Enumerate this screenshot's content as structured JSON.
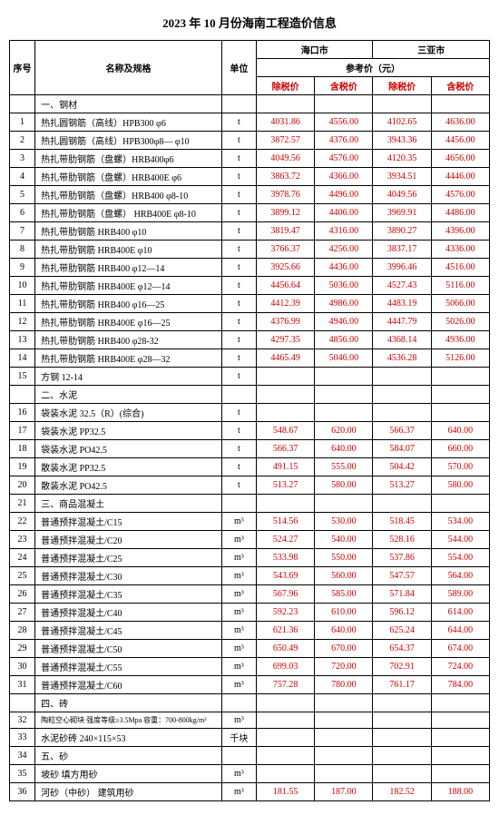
{
  "title": "2023 年 10 月份海南工程造价信息",
  "headers": {
    "seq": "序号",
    "name": "名称及规格",
    "unit": "单位",
    "city1": "海口市",
    "city2": "三亚市",
    "refprice": "参考价（元）",
    "exTax": "除税价",
    "inTax": "含税价"
  },
  "rows": [
    {
      "seq": "",
      "name": "一、钢材",
      "unit": "",
      "p": [
        "",
        "",
        "",
        ""
      ],
      "section": true
    },
    {
      "seq": "1",
      "name": "热扎圆钢筋（高线）HPB300 φ6",
      "unit": "t",
      "p": [
        "4031.86",
        "4556.00",
        "4102.65",
        "4636.00"
      ]
    },
    {
      "seq": "2",
      "name": "热扎圆钢筋（高线）HPB300φ8— φ10",
      "unit": "t",
      "p": [
        "3872.57",
        "4376.00",
        "3943.36",
        "4456.00"
      ]
    },
    {
      "seq": "3",
      "name": "热扎带肋钢筋（盘螺）HRB400φ6",
      "unit": "t",
      "p": [
        "4049.56",
        "4576.00",
        "4120.35",
        "4656.00"
      ]
    },
    {
      "seq": "4",
      "name": "热扎带肋钢筋（盘螺）HRB400E φ6",
      "unit": "t",
      "p": [
        "3863.72",
        "4366.00",
        "3934.51",
        "4446.00"
      ]
    },
    {
      "seq": "5",
      "name": "热扎带肋钢筋（盘螺）HRB400 φ8-10",
      "unit": "t",
      "p": [
        "3978.76",
        "4496.00",
        "4049.56",
        "4576.00"
      ]
    },
    {
      "seq": "6",
      "name": "热扎带肋钢筋（盘螺） HRB400E φ8-10",
      "unit": "t",
      "p": [
        "3899.12",
        "4406.00",
        "3969.91",
        "4486.00"
      ]
    },
    {
      "seq": "7",
      "name": "热扎带肋钢筋  HRB400    φ10",
      "unit": "t",
      "p": [
        "3819.47",
        "4316.00",
        "3890.27",
        "4396.00"
      ]
    },
    {
      "seq": "8",
      "name": "热扎带肋钢筋  HRB400E   φ10",
      "unit": "t",
      "p": [
        "3766.37",
        "4256.00",
        "3837.17",
        "4336.00"
      ]
    },
    {
      "seq": "9",
      "name": "热扎带肋钢筋  HRB400    φ12—14",
      "unit": "t",
      "p": [
        "3925.66",
        "4436.00",
        "3996.46",
        "4516.00"
      ]
    },
    {
      "seq": "10",
      "name": "热扎带肋钢筋  HRB400E    φ12—14",
      "unit": "t",
      "p": [
        "4456.64",
        "5036.00",
        "4527.43",
        "5116.00"
      ]
    },
    {
      "seq": "11",
      "name": "热扎带肋钢筋  HRB400    φ16—25",
      "unit": "t",
      "p": [
        "4412.39",
        "4986.00",
        "4483.19",
        "5066.00"
      ]
    },
    {
      "seq": "12",
      "name": "热扎带肋钢筋  HRB400E    φ16—25",
      "unit": "t",
      "p": [
        "4376.99",
        "4946.00",
        "4447.79",
        "5026.00"
      ]
    },
    {
      "seq": "13",
      "name": "热扎带肋钢筋  HRB400    φ28-32",
      "unit": "t",
      "p": [
        "4297.35",
        "4856.00",
        "4368.14",
        "4936.00"
      ]
    },
    {
      "seq": "14",
      "name": "热扎带肋钢筋  HRB400E   φ28—32",
      "unit": "t",
      "p": [
        "4465.49",
        "5046.00",
        "4536.28",
        "5126.00"
      ]
    },
    {
      "seq": "15",
      "name": "方钢   12-14",
      "unit": "t",
      "p": [
        "",
        "",
        "",
        ""
      ]
    },
    {
      "seq": "",
      "name": "二、水泥",
      "unit": "",
      "p": [
        "",
        "",
        "",
        ""
      ],
      "section": true
    },
    {
      "seq": "16",
      "name": "袋装水泥 32.5（R）(综合)",
      "unit": "t",
      "p": [
        "",
        "",
        "",
        ""
      ]
    },
    {
      "seq": "17",
      "name": "袋装水泥 PP32.5",
      "unit": "t",
      "p": [
        "548.67",
        "620.00",
        "566.37",
        "640.00"
      ]
    },
    {
      "seq": "18",
      "name": "袋装水泥 PO42.5",
      "unit": "t",
      "p": [
        "566.37",
        "640.00",
        "584.07",
        "660.00"
      ]
    },
    {
      "seq": "19",
      "name": "散装水泥 PP32.5",
      "unit": "t",
      "p": [
        "491.15",
        "555.00",
        "504.42",
        "570.00"
      ]
    },
    {
      "seq": "20",
      "name": "散装水泥 PO42.5",
      "unit": "t",
      "p": [
        "513.27",
        "580.00",
        "513.27",
        "580.00"
      ]
    },
    {
      "seq": "21",
      "name": "三、商品混凝土",
      "unit": "",
      "p": [
        "",
        "",
        "",
        ""
      ],
      "section": true
    },
    {
      "seq": "22",
      "name": "普通预拌混凝土/C15",
      "unit": "m³",
      "p": [
        "514.56",
        "530.00",
        "518.45",
        "534.00"
      ]
    },
    {
      "seq": "23",
      "name": "普通预拌混凝土/C20",
      "unit": "m³",
      "p": [
        "524.27",
        "540.00",
        "528.16",
        "544.00"
      ]
    },
    {
      "seq": "24",
      "name": "普通预拌混凝土/C25",
      "unit": "m³",
      "p": [
        "533.98",
        "550.00",
        "537.86",
        "554.00"
      ]
    },
    {
      "seq": "25",
      "name": "普通预拌混凝土/C30",
      "unit": "m³",
      "p": [
        "543.69",
        "560.00",
        "547.57",
        "564.00"
      ]
    },
    {
      "seq": "26",
      "name": "普通预拌混凝土/C35",
      "unit": "m³",
      "p": [
        "567.96",
        "585.00",
        "571.84",
        "589.00"
      ]
    },
    {
      "seq": "27",
      "name": "普通预拌混凝土/C40",
      "unit": "m³",
      "p": [
        "592.23",
        "610.00",
        "596.12",
        "614.00"
      ]
    },
    {
      "seq": "28",
      "name": "普通预拌混凝土/C45",
      "unit": "m³",
      "p": [
        "621.36",
        "640.00",
        "625.24",
        "644.00"
      ]
    },
    {
      "seq": "29",
      "name": "普通预拌混凝土/C50",
      "unit": "m³",
      "p": [
        "650.49",
        "670.00",
        "654.37",
        "674.00"
      ]
    },
    {
      "seq": "30",
      "name": "普通预拌混凝土/C55",
      "unit": "m³",
      "p": [
        "699.03",
        "720.00",
        "702.91",
        "724.00"
      ]
    },
    {
      "seq": "31",
      "name": "普通预拌混凝土/C60",
      "unit": "m³",
      "p": [
        "757.28",
        "780.00",
        "761.17",
        "784.00"
      ]
    },
    {
      "seq": "",
      "name": "四、砖",
      "unit": "",
      "p": [
        "",
        "",
        "",
        ""
      ],
      "section": true
    },
    {
      "seq": "32",
      "name": "陶粒空心砌块 强度等级≥3.5Mpa 容重：700-800kg/m³",
      "unit": "m³",
      "p": [
        "",
        "",
        "",
        ""
      ],
      "small": true
    },
    {
      "seq": "33",
      "name": "水泥砂砖 240×115×53",
      "unit": "千块",
      "p": [
        "",
        "",
        "",
        ""
      ]
    },
    {
      "seq": "34",
      "name": "五、砂",
      "unit": "",
      "p": [
        "",
        "",
        "",
        ""
      ],
      "section": true
    },
    {
      "seq": "35",
      "name": "坡砂 填方用砂",
      "unit": "m³",
      "p": [
        "",
        "",
        "",
        ""
      ]
    },
    {
      "seq": "36",
      "name": "河砂（中砂） 建筑用砂",
      "unit": "m³",
      "p": [
        "181.55",
        "187.00",
        "182.52",
        "188.00"
      ]
    }
  ]
}
